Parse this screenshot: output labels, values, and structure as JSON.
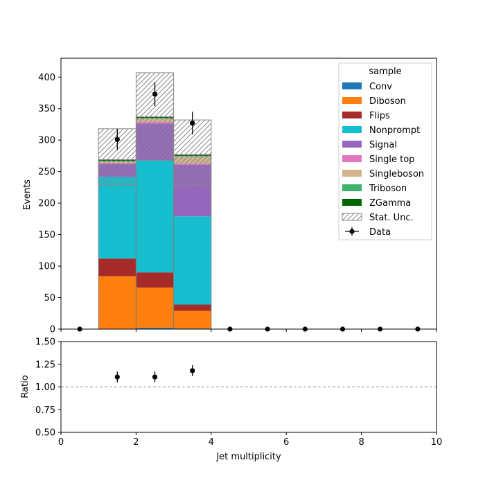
{
  "chart_data": [
    {
      "type": "bar",
      "stacked": true,
      "bin_edges": [
        0,
        1,
        2,
        3,
        4,
        5,
        6,
        7,
        8,
        9,
        10
      ],
      "series": [
        {
          "name": "Conv",
          "color": "#1f77b4",
          "values": [
            0,
            0,
            2,
            1,
            0,
            0,
            0,
            0,
            0,
            0
          ]
        },
        {
          "name": "Diboson",
          "color": "#ff7f0e",
          "values": [
            0,
            84,
            64,
            28,
            0,
            0,
            0,
            0,
            0,
            0
          ]
        },
        {
          "name": "Flips",
          "color": "#a52a2a",
          "values": [
            0,
            28,
            24,
            10,
            0,
            0,
            0,
            0,
            0,
            0
          ]
        },
        {
          "name": "Nonprompt",
          "color": "#17becf",
          "values": [
            0,
            130,
            178,
            140,
            0,
            0,
            0,
            0,
            0,
            0
          ]
        },
        {
          "name": "Signal",
          "color": "#9467bd",
          "values": [
            0,
            20,
            58,
            82,
            0,
            0,
            0,
            0,
            0,
            0
          ]
        },
        {
          "name": "Single top",
          "color": "#e377c2",
          "values": [
            0,
            2,
            3,
            2,
            0,
            0,
            0,
            0,
            0,
            0
          ]
        },
        {
          "name": "Singleboson",
          "color": "#d2b48c",
          "values": [
            0,
            2,
            5,
            11,
            0,
            0,
            0,
            0,
            0,
            0
          ]
        },
        {
          "name": "Triboson",
          "color": "#3cb371",
          "values": [
            0,
            1,
            1,
            1,
            0,
            0,
            0,
            0,
            0,
            0
          ]
        },
        {
          "name": "ZGamma",
          "color": "#006400",
          "values": [
            0,
            2,
            2,
            2,
            0,
            0,
            0,
            0,
            0,
            0
          ]
        }
      ],
      "stat_unc": {
        "name": "Stat. Unc.",
        "low": [
          0,
          228,
          268,
          228,
          0,
          0,
          0,
          0,
          0,
          0
        ],
        "high": [
          0,
          318,
          407,
          332,
          0,
          0,
          0,
          0,
          0,
          0
        ]
      },
      "data": {
        "name": "Data",
        "x": [
          0.5,
          1.5,
          2.5,
          3.5,
          4.5,
          5.5,
          6.5,
          7.5,
          8.5,
          9.5
        ],
        "y": [
          0,
          301,
          373,
          327,
          0,
          0,
          0,
          0,
          0,
          0
        ],
        "yerr": [
          0,
          17,
          19,
          18,
          0,
          0,
          0,
          0,
          0,
          0
        ]
      },
      "ylabel": "Events",
      "ylim": [
        0,
        430
      ],
      "yticks": [
        0,
        50,
        100,
        150,
        200,
        250,
        300,
        350,
        400
      ],
      "xlim": [
        0,
        10
      ],
      "legend": {
        "title": "sample",
        "placement": "top-right"
      },
      "grid": false
    },
    {
      "type": "scatter",
      "points": [
        {
          "x": 1.5,
          "y": 1.11,
          "err": 0.06
        },
        {
          "x": 2.5,
          "y": 1.11,
          "err": 0.06
        },
        {
          "x": 3.5,
          "y": 1.18,
          "err": 0.06
        }
      ],
      "reference_line": 1.0,
      "xlabel": "Jet multiplicity",
      "ylabel": "Ratio",
      "ylim": [
        0.5,
        1.5
      ],
      "yticks": [
        "0.50",
        "0.75",
        "1.00",
        "1.25",
        "1.50"
      ],
      "xticks": [
        "0",
        "2",
        "4",
        "6",
        "8",
        "10"
      ],
      "xlim": [
        0,
        10
      ],
      "grid": false
    }
  ]
}
